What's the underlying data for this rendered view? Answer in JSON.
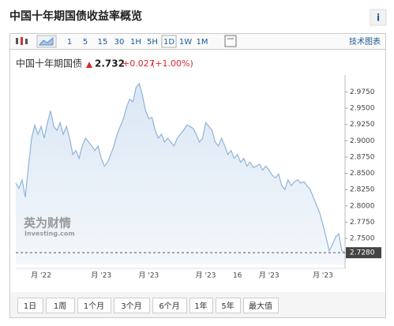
{
  "header": {
    "title": "中国十年期国债收益率概览",
    "info": "i"
  },
  "toolbar": {
    "buttons": [
      "1",
      "5",
      "15",
      "30",
      "1H",
      "5H",
      "1D",
      "1W",
      "1M"
    ],
    "selected": "1D",
    "link": "技术图表"
  },
  "quote": {
    "name": "中国十年期国债",
    "price": "2.732",
    "change": "+0.027",
    "percent": "(+1.00%)"
  },
  "watermark": {
    "brand": "英为财情",
    "site": "Investing.com"
  },
  "ranges": [
    "1日",
    "1周",
    "1个月",
    "3个月",
    "6个月",
    "1年",
    "5年",
    "最大值"
  ],
  "chart_data": {
    "type": "area",
    "categories": [
      null,
      null,
      null,
      null,
      null,
      null,
      null,
      null,
      "月 '22",
      null,
      null,
      null,
      null,
      null,
      null,
      null,
      null,
      null,
      null,
      null,
      null,
      null,
      null,
      null,
      null,
      null,
      null,
      "月 '23",
      null,
      null,
      null,
      null,
      null,
      null,
      null,
      null,
      null,
      null,
      null,
      null,
      null,
      null,
      "月 '23",
      null,
      null,
      null,
      null,
      null,
      null,
      null,
      null,
      null,
      null,
      null,
      null,
      null,
      null,
      null,
      null,
      null,
      "月 '23",
      null,
      null,
      null,
      null,
      null,
      null,
      null,
      null,
      null,
      "16",
      null,
      null,
      null,
      null,
      null,
      null,
      null,
      null,
      null,
      "月 '23",
      null,
      null,
      null,
      null,
      null,
      null,
      null,
      null,
      null,
      null,
      null,
      null,
      null,
      null,
      null,
      null,
      "月 '23",
      null,
      null,
      null,
      null,
      null,
      null,
      null
    ],
    "series": [
      {
        "name": "中国十年期国债",
        "color": "#8fb3da",
        "values": [
          2.835,
          2.827,
          2.84,
          2.813,
          2.861,
          2.904,
          2.924,
          2.91,
          2.922,
          2.904,
          2.928,
          2.946,
          2.922,
          2.916,
          2.928,
          2.91,
          2.922,
          2.904,
          2.879,
          2.885,
          2.873,
          2.892,
          2.904,
          2.898,
          2.892,
          2.885,
          2.892,
          2.873,
          2.861,
          2.867,
          2.879,
          2.892,
          2.91,
          2.922,
          2.934,
          2.952,
          2.964,
          2.96,
          2.982,
          2.988,
          2.97,
          2.946,
          2.934,
          2.936,
          2.916,
          2.904,
          2.91,
          2.898,
          2.904,
          2.898,
          2.892,
          2.904,
          2.91,
          2.916,
          2.924,
          2.922,
          2.919,
          2.91,
          2.898,
          2.904,
          2.928,
          2.922,
          2.916,
          2.898,
          2.892,
          2.904,
          2.892,
          2.879,
          2.885,
          2.873,
          2.879,
          2.867,
          2.873,
          2.861,
          2.867,
          2.859,
          2.861,
          2.864,
          2.855,
          2.861,
          2.855,
          2.847,
          2.843,
          2.849,
          2.831,
          2.825,
          2.84,
          2.831,
          2.837,
          2.84,
          2.835,
          2.837,
          2.831,
          2.825,
          2.813,
          2.801,
          2.789,
          2.771,
          2.752,
          2.731,
          2.74,
          2.752,
          2.757,
          2.731,
          2.728
        ]
      }
    ],
    "current": {
      "value": 2.728,
      "label": "2.7280"
    },
    "ylim": [
      2.71,
      2.995
    ],
    "yticks": [
      {
        "value": 2.75,
        "label": "2.7500"
      },
      {
        "value": 2.775,
        "label": "2.7750"
      },
      {
        "value": 2.8,
        "label": "2.8000"
      },
      {
        "value": 2.825,
        "label": "2.8250"
      },
      {
        "value": 2.85,
        "label": "2.8500"
      },
      {
        "value": 2.875,
        "label": "2.8750"
      },
      {
        "value": 2.9,
        "label": "2.9000"
      },
      {
        "value": 2.925,
        "label": "2.9250"
      },
      {
        "value": 2.95,
        "label": "2.9500"
      },
      {
        "value": 2.975,
        "label": "2.9750"
      }
    ],
    "grid": false
  }
}
